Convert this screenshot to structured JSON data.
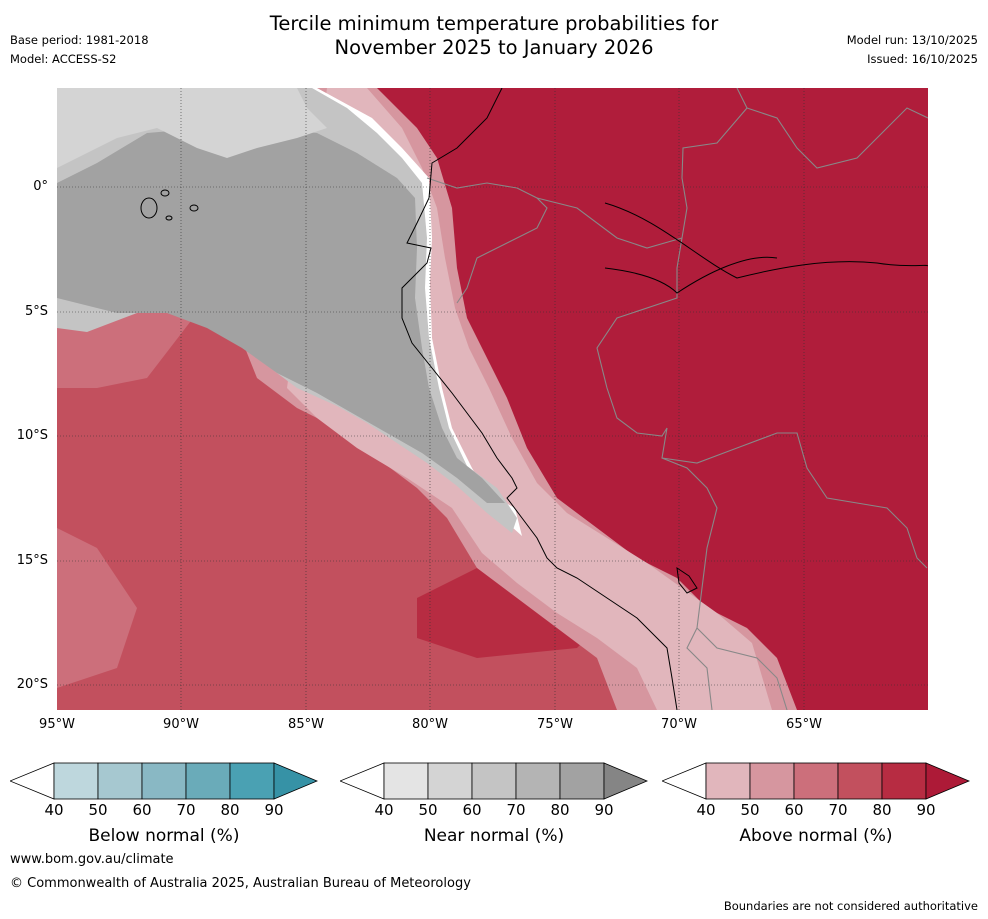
{
  "title_line1": "Tercile minimum temperature probabilities for",
  "title_line2": "November 2025 to January 2026",
  "header": {
    "base_period": "Base period: 1981-2018",
    "model": "Model: ACCESS-S2",
    "model_run": "Model run: 13/10/2025",
    "issued": "Issued: 16/10/2025"
  },
  "map": {
    "lat_labels": [
      "0°",
      "5°S",
      "10°S",
      "15°S",
      "20°S"
    ],
    "lon_labels": [
      "95°W",
      "90°W",
      "85°W",
      "80°W",
      "75°W",
      "70°W",
      "65°W"
    ]
  },
  "legends": [
    {
      "title": "Below normal (%)",
      "ticks": [
        "40",
        "50",
        "60",
        "70",
        "80",
        "90"
      ],
      "colors": [
        "#ffffff",
        "#bed7dd",
        "#a6c8d0",
        "#89b8c4",
        "#6aabb9",
        "#4aa1b3",
        "#3692a6"
      ]
    },
    {
      "title": "Near normal (%)",
      "ticks": [
        "40",
        "50",
        "60",
        "70",
        "80",
        "90"
      ],
      "colors": [
        "#ffffff",
        "#e4e4e4",
        "#d4d4d4",
        "#c4c4c4",
        "#b4b4b4",
        "#a2a2a2",
        "#858585"
      ]
    },
    {
      "title": "Above normal (%)",
      "ticks": [
        "40",
        "50",
        "60",
        "70",
        "80",
        "90"
      ],
      "colors": [
        "#ffffff",
        "#e1b6bc",
        "#d6969f",
        "#cc6f7b",
        "#c2505e",
        "#b72c42",
        "#ad1a37"
      ]
    }
  ],
  "colors": {
    "above_90": "#b01d3b",
    "above_80": "#b72c42",
    "above_70": "#c2505e",
    "above_60": "#cc6f7b",
    "above_50": "#d6969f",
    "above_40": "#e1b6bc",
    "near_90": "#a2a2a2",
    "near_80": "#b4b4b4",
    "near_70": "#c4c4c4",
    "near_60": "#d4d4d4"
  },
  "footer": {
    "website": "www.bom.gov.au/climate",
    "copyright": "© Commonwealth of Australia 2025, Australian Bureau of Meteorology",
    "disclaimer": "Boundaries are not considered authoritative"
  }
}
